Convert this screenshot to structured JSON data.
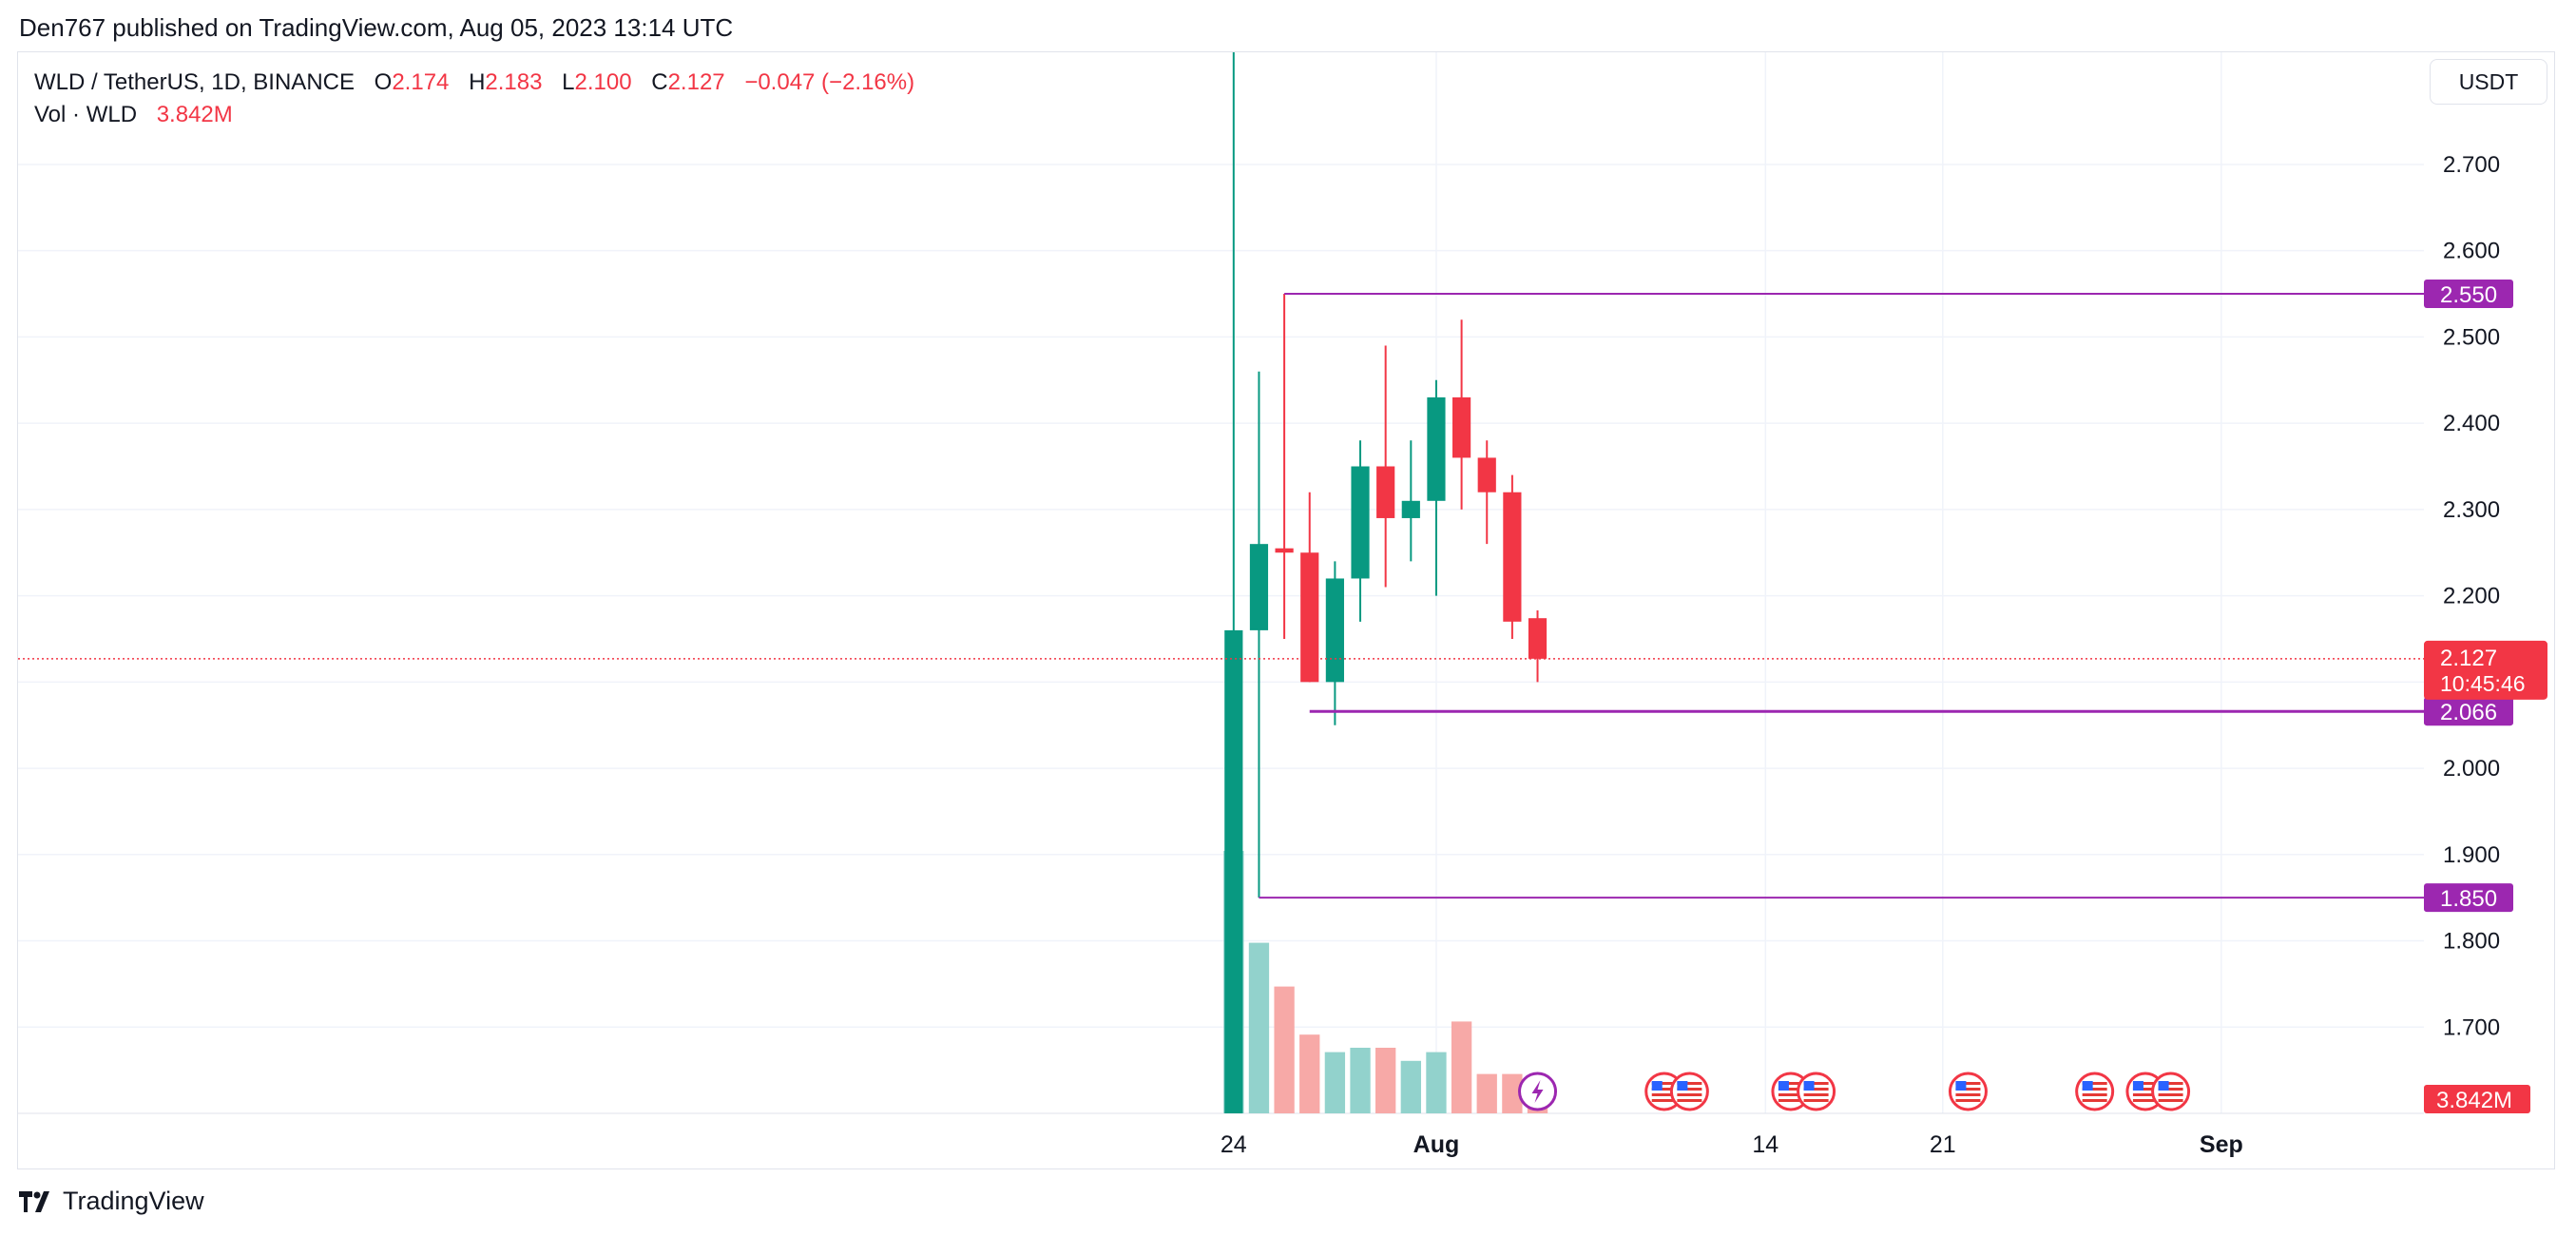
{
  "publisher_line": "Den767 published on TradingView.com, Aug 05, 2023 13:14 UTC",
  "legend": {
    "symbol": "WLD / TetherUS, 1D, BINANCE",
    "o_label": "O",
    "o_value": "2.174",
    "h_label": "H",
    "h_value": "2.183",
    "l_label": "L",
    "l_value": "2.100",
    "c_label": "C",
    "c_value": "2.127",
    "change": "−0.047 (−2.16%)",
    "vol_label": "Vol · WLD",
    "vol_value": "3.842M"
  },
  "currency_button": "USDT",
  "footer": {
    "brand": "TradingView"
  },
  "colors": {
    "up": "#089981",
    "down": "#f23645",
    "up_volume": "#92d2cc",
    "down_volume": "#f7a9a7",
    "level_line": "#9c27b0",
    "grid": "#f0f3fa",
    "axis_text": "#131722"
  },
  "chart_data": {
    "type": "candlestick",
    "title": "WLD / TetherUS, 1D, BINANCE",
    "y_axis": {
      "side": "right",
      "ylim": [
        1.6,
        2.83
      ],
      "ticks": [
        1.7,
        1.8,
        1.9,
        2.0,
        2.1,
        2.2,
        2.3,
        2.4,
        2.5,
        2.6,
        2.7
      ],
      "tick_labels": [
        "1.700",
        "1.800",
        "1.900",
        "2.000",
        "2.100",
        "2.200",
        "2.300",
        "2.400",
        "2.500",
        "2.600",
        "2.700"
      ]
    },
    "x_axis": {
      "labels": [
        {
          "text": "24",
          "date": "2023-07-24"
        },
        {
          "text": "Aug",
          "date": "2023-08-01",
          "bold": true
        },
        {
          "text": "14",
          "date": "2023-08-14"
        },
        {
          "text": "21",
          "date": "2023-08-21"
        },
        {
          "text": "Sep",
          "date": "2023-09-01",
          "bold": true
        }
      ],
      "range": [
        "2023-06-06",
        "2023-09-09"
      ]
    },
    "candles": [
      {
        "date": "2023-07-24",
        "open": 1.6,
        "high": 3.6,
        "low": 1.6,
        "close": 2.16
      },
      {
        "date": "2023-07-25",
        "open": 2.16,
        "high": 2.46,
        "low": 1.85,
        "close": 2.26
      },
      {
        "date": "2023-07-26",
        "open": 2.255,
        "high": 2.55,
        "low": 2.15,
        "close": 2.25
      },
      {
        "date": "2023-07-27",
        "open": 2.25,
        "high": 2.32,
        "low": 2.1,
        "close": 2.1
      },
      {
        "date": "2023-07-28",
        "open": 2.1,
        "high": 2.24,
        "low": 2.05,
        "close": 2.22
      },
      {
        "date": "2023-07-29",
        "open": 2.22,
        "high": 2.38,
        "low": 2.17,
        "close": 2.35
      },
      {
        "date": "2023-07-30",
        "open": 2.35,
        "high": 2.49,
        "low": 2.21,
        "close": 2.29
      },
      {
        "date": "2023-07-31",
        "open": 2.29,
        "high": 2.38,
        "low": 2.24,
        "close": 2.31
      },
      {
        "date": "2023-08-01",
        "open": 2.31,
        "high": 2.45,
        "low": 2.2,
        "close": 2.43
      },
      {
        "date": "2023-08-02",
        "open": 2.43,
        "high": 2.52,
        "low": 2.3,
        "close": 2.36
      },
      {
        "date": "2023-08-03",
        "open": 2.36,
        "high": 2.38,
        "low": 2.26,
        "close": 2.32
      },
      {
        "date": "2023-08-04",
        "open": 2.32,
        "high": 2.34,
        "low": 2.15,
        "close": 2.17
      },
      {
        "date": "2023-08-05",
        "open": 2.174,
        "high": 2.183,
        "low": 2.1,
        "close": 2.127
      }
    ],
    "volume": [
      {
        "date": "2023-07-24",
        "value": 6.0,
        "dir": "up"
      },
      {
        "date": "2023-07-25",
        "value": 3.9,
        "dir": "up"
      },
      {
        "date": "2023-07-26",
        "value": 2.9,
        "dir": "down"
      },
      {
        "date": "2023-07-27",
        "value": 1.8,
        "dir": "down"
      },
      {
        "date": "2023-07-28",
        "value": 1.4,
        "dir": "up"
      },
      {
        "date": "2023-07-29",
        "value": 1.5,
        "dir": "up"
      },
      {
        "date": "2023-07-30",
        "value": 1.5,
        "dir": "down"
      },
      {
        "date": "2023-07-31",
        "value": 1.2,
        "dir": "up"
      },
      {
        "date": "2023-08-01",
        "value": 1.4,
        "dir": "up"
      },
      {
        "date": "2023-08-02",
        "value": 2.1,
        "dir": "down"
      },
      {
        "date": "2023-08-03",
        "value": 0.9,
        "dir": "down"
      },
      {
        "date": "2023-08-04",
        "value": 0.9,
        "dir": "down"
      },
      {
        "date": "2023-08-05",
        "value": 0.4,
        "dir": "down"
      }
    ],
    "horizontal_levels": [
      {
        "price": 2.55,
        "label": "2.550",
        "start_date": "2023-07-26"
      },
      {
        "price": 2.066,
        "label": "2.066",
        "start_date": "2023-07-27"
      },
      {
        "price": 1.85,
        "label": "1.850",
        "start_date": "2023-07-25"
      }
    ],
    "last_price": {
      "value": 2.127,
      "label": "2.127",
      "countdown": "10:45:46"
    },
    "volume_badge": "3.842M",
    "events": {
      "crypto_event_dates": [
        "2023-08-05"
      ],
      "economic_event_dates": [
        "2023-08-10",
        "2023-08-11",
        "2023-08-15",
        "2023-08-16",
        "2023-08-22",
        "2023-08-27",
        "2023-08-29",
        "2023-08-30"
      ]
    },
    "grid": true,
    "legend_position": "top-left"
  }
}
